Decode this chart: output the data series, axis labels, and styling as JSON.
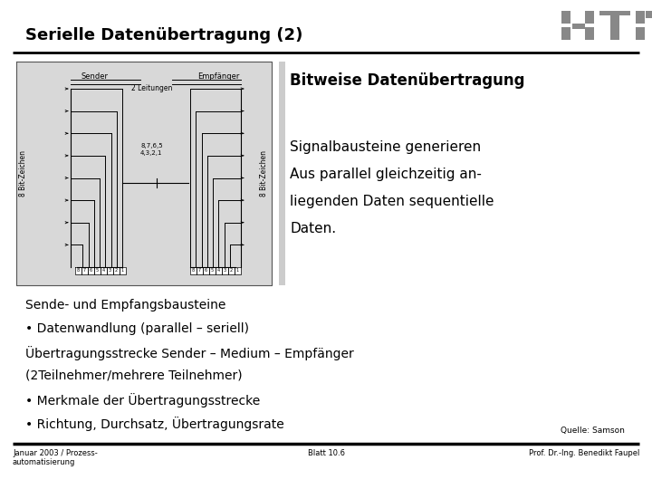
{
  "title": "Serielle Datenübertragung (2)",
  "bg_color": "#ffffff",
  "title_color": "#000000",
  "title_fontsize": 13,
  "logo_color": "#888888",
  "right_bold_line": "Bitweise Datenübertragung",
  "right_desc_lines": [
    "Signalbausteine generieren",
    "Aus parallel gleichzeitig an-",
    "liegenden Daten sequentielle",
    "Daten."
  ],
  "body_lines": [
    "Sende- und Empfangsbausteine",
    "• Datenwandlung (parallel – seriell)",
    "Übertragungsstrecke Sender – Medium – Empfänger",
    "(2Teilnehmer/mehrere Teilnehmer)",
    "• Merkmale der Übertragungsstrecke",
    "• Richtung, Durchsatz, Übertragungsrate"
  ],
  "source_text": "Quelle: Samson",
  "footer_left": "Januar 2003 / Prozess-\nautomatisierung",
  "footer_center": "Blatt 10.6",
  "footer_right": "Prof. Dr.-Ing. Benedikt Faupel"
}
